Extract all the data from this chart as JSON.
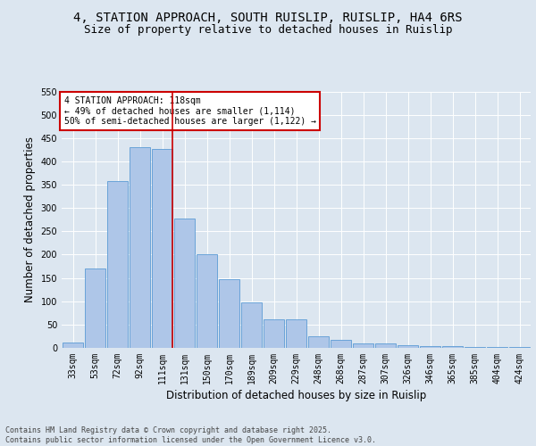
{
  "title_line1": "4, STATION APPROACH, SOUTH RUISLIP, RUISLIP, HA4 6RS",
  "title_line2": "Size of property relative to detached houses in Ruislip",
  "xlabel": "Distribution of detached houses by size in Ruislip",
  "ylabel": "Number of detached properties",
  "categories": [
    "33sqm",
    "53sqm",
    "72sqm",
    "92sqm",
    "111sqm",
    "131sqm",
    "150sqm",
    "170sqm",
    "189sqm",
    "209sqm",
    "229sqm",
    "248sqm",
    "268sqm",
    "287sqm",
    "307sqm",
    "326sqm",
    "346sqm",
    "365sqm",
    "385sqm",
    "404sqm",
    "424sqm"
  ],
  "values": [
    12,
    170,
    357,
    430,
    427,
    277,
    200,
    148,
    98,
    61,
    61,
    25,
    18,
    10,
    10,
    6,
    4,
    4,
    1,
    1,
    2
  ],
  "bar_color": "#aec6e8",
  "bar_edge_color": "#5b9bd5",
  "vline_color": "#cc0000",
  "vline_pos": 4.45,
  "annotation_text": "4 STATION APPROACH: 118sqm\n← 49% of detached houses are smaller (1,114)\n50% of semi-detached houses are larger (1,122) →",
  "annotation_box_color": "#ffffff",
  "annotation_box_edge_color": "#cc0000",
  "ylim": [
    0,
    550
  ],
  "yticks": [
    0,
    50,
    100,
    150,
    200,
    250,
    300,
    350,
    400,
    450,
    500,
    550
  ],
  "background_color": "#dce6f0",
  "plot_bg_color": "#dce6f0",
  "footer_text": "Contains HM Land Registry data © Crown copyright and database right 2025.\nContains public sector information licensed under the Open Government Licence v3.0.",
  "title_fontsize": 10,
  "subtitle_fontsize": 9,
  "tick_fontsize": 7,
  "label_fontsize": 8.5,
  "annotation_fontsize": 7,
  "footer_fontsize": 6
}
